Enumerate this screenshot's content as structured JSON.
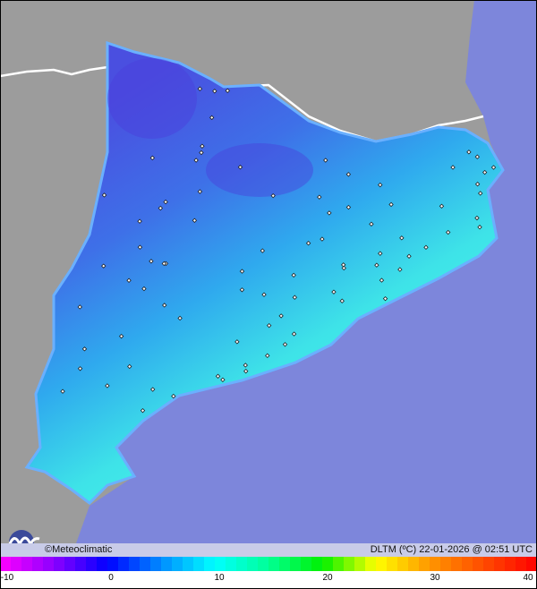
{
  "map": {
    "colors": {
      "sea": "#7d86db",
      "land": "#9c9c9c",
      "border": "#ffffff",
      "region_cold": "#4a58e0",
      "region_mid": "#2fa6ee",
      "region_warm": "#3fe6e6"
    }
  },
  "footer": {
    "credit": "©Meteoclimatic",
    "stamp": "DLTM (ºC) 22-01-2026 @ 02:51 UTC"
  },
  "legend": {
    "min": -10,
    "max": 40,
    "ticks": [
      "-10",
      "0",
      "10",
      "20",
      "30",
      "40"
    ],
    "unit": "ºC"
  }
}
